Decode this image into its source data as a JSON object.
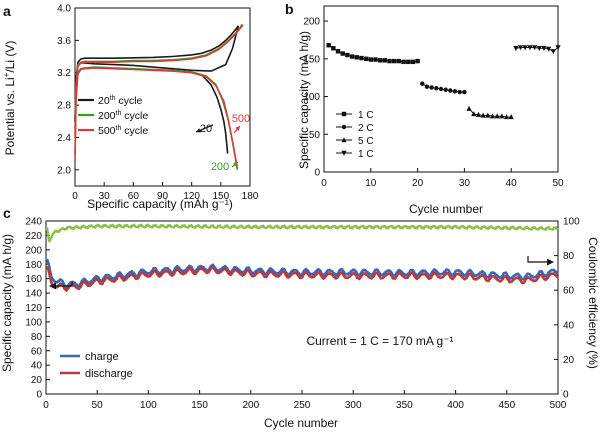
{
  "chart_data": [
    {
      "panel": "a",
      "type": "line",
      "xlabel": "Specific capacity (mAh g⁻¹)",
      "ylabel_main": "Potential vs. Li",
      "ylabel_sup": "+",
      "ylabel_end": "/Li (V)",
      "xlim": [
        0,
        180
      ],
      "ylim": [
        1.8,
        4.0
      ],
      "xticks": [
        0,
        30,
        60,
        90,
        120,
        150,
        180
      ],
      "yticks": [
        2.0,
        2.4,
        2.8,
        3.2,
        3.6,
        4.0
      ],
      "ytick_labels": [
        "2.0",
        "2.4",
        "2.8",
        "3.2",
        "3.6",
        "4.0"
      ],
      "legend": [
        {
          "base": "20",
          "sup": "th",
          "rest": " cycle",
          "color": "#1a1a1a"
        },
        {
          "base": "200",
          "sup": "th",
          "rest": " cycle",
          "color": "#3a9a2a"
        },
        {
          "base": "500",
          "sup": "th",
          "rest": " cycle",
          "color": "#d83a3a"
        }
      ],
      "annotations": [
        {
          "text": "20",
          "color": "#1a1a1a"
        },
        {
          "text": "500",
          "color": "#d83a3a"
        },
        {
          "text": "200",
          "color": "#3a9a2a"
        }
      ],
      "series": [
        {
          "name": "20th charge",
          "color": "#1a1a1a",
          "x": [
            0,
            1,
            3,
            6,
            10,
            20,
            40,
            60,
            80,
            100,
            120,
            130,
            140,
            148,
            155,
            160,
            165,
            168
          ],
          "y": [
            2.6,
            3.1,
            3.33,
            3.37,
            3.38,
            3.38,
            3.38,
            3.385,
            3.39,
            3.4,
            3.42,
            3.44,
            3.48,
            3.53,
            3.6,
            3.66,
            3.73,
            3.78
          ]
        },
        {
          "name": "20th discharge",
          "color": "#1a1a1a",
          "x": [
            168,
            162,
            155,
            140,
            120,
            100,
            80,
            60,
            40,
            20,
            10,
            6,
            3,
            1,
            0
          ],
          "y": [
            3.78,
            3.5,
            3.3,
            3.22,
            3.23,
            3.25,
            3.27,
            3.29,
            3.3,
            3.31,
            3.32,
            3.32,
            3.3,
            3.1,
            2.6
          ]
        },
        {
          "name": "20th discharge tail",
          "color": "#1a1a1a",
          "x": [
            130,
            140,
            146,
            150,
            153,
            155,
            157
          ],
          "y": [
            3.18,
            3.05,
            2.9,
            2.75,
            2.6,
            2.45,
            2.2
          ]
        },
        {
          "name": "200th charge",
          "color": "#3a9a2a",
          "x": [
            0,
            1,
            3,
            6,
            10,
            20,
            40,
            60,
            80,
            100,
            120,
            135,
            148,
            158,
            166,
            170,
            172
          ],
          "y": [
            2.5,
            3.05,
            3.3,
            3.33,
            3.34,
            3.34,
            3.34,
            3.35,
            3.35,
            3.36,
            3.38,
            3.42,
            3.5,
            3.6,
            3.7,
            3.76,
            3.8
          ]
        },
        {
          "name": "200th discharge",
          "color": "#3a9a2a",
          "x": [
            0,
            1,
            3,
            6,
            10,
            20,
            40,
            60,
            80,
            100,
            120,
            135,
            145,
            152,
            158,
            162,
            165,
            167
          ],
          "y": [
            2.2,
            2.9,
            3.2,
            3.25,
            3.26,
            3.27,
            3.26,
            3.25,
            3.24,
            3.23,
            3.21,
            3.16,
            3.05,
            2.85,
            2.6,
            2.35,
            2.15,
            2.0
          ]
        },
        {
          "name": "500th charge",
          "color": "#d83a3a",
          "x": [
            0,
            1,
            3,
            6,
            10,
            20,
            40,
            60,
            80,
            100,
            120,
            135,
            148,
            158,
            166,
            170,
            173
          ],
          "y": [
            2.4,
            3.0,
            3.28,
            3.32,
            3.33,
            3.33,
            3.33,
            3.34,
            3.34,
            3.35,
            3.37,
            3.41,
            3.49,
            3.59,
            3.69,
            3.75,
            3.79
          ]
        },
        {
          "name": "500th discharge",
          "color": "#d83a3a",
          "x": [
            0,
            1,
            3,
            6,
            10,
            20,
            40,
            60,
            80,
            100,
            120,
            135,
            145,
            153,
            158,
            162,
            165,
            167
          ],
          "y": [
            2.1,
            2.85,
            3.18,
            3.24,
            3.25,
            3.26,
            3.25,
            3.24,
            3.23,
            3.22,
            3.2,
            3.15,
            3.04,
            2.85,
            2.6,
            2.35,
            2.15,
            2.02
          ]
        }
      ]
    },
    {
      "panel": "b",
      "type": "scatter",
      "xlabel": "Cycle number",
      "ylabel": "Specific capacity (mA h/g)",
      "xlim": [
        0,
        50
      ],
      "ylim": [
        0,
        220
      ],
      "xticks": [
        0,
        10,
        20,
        30,
        40,
        50
      ],
      "yticks": [
        0,
        50,
        100,
        150,
        200
      ],
      "legend": [
        {
          "marker": "square",
          "label": "1 C"
        },
        {
          "marker": "circle",
          "label": "2 C"
        },
        {
          "marker": "triangle-up",
          "label": "5 C"
        },
        {
          "marker": "triangle-down",
          "label": "1 C"
        }
      ],
      "series": [
        {
          "name": "1 C",
          "marker": "square",
          "x": [
            1,
            2,
            3,
            4,
            5,
            6,
            7,
            8,
            9,
            10,
            11,
            12,
            13,
            14,
            15,
            16,
            17,
            18,
            19,
            20
          ],
          "y": [
            168,
            164,
            160,
            157,
            155,
            153,
            152,
            151,
            150,
            149,
            149,
            148,
            148,
            147,
            147,
            147,
            146,
            146,
            146,
            147
          ]
        },
        {
          "name": "2 C",
          "marker": "circle",
          "x": [
            21,
            22,
            23,
            24,
            25,
            26,
            27,
            28,
            29,
            30
          ],
          "y": [
            117,
            113,
            112,
            111,
            110,
            109,
            108,
            107,
            106,
            106
          ]
        },
        {
          "name": "5 C",
          "marker": "triangle-up",
          "x": [
            31,
            32,
            33,
            34,
            35,
            36,
            37,
            38,
            39,
            40
          ],
          "y": [
            84,
            77,
            76,
            75,
            75,
            74,
            74,
            74,
            73,
            73
          ]
        },
        {
          "name": "1 C",
          "marker": "triangle-down",
          "x": [
            41,
            42,
            43,
            44,
            45,
            46,
            47,
            48,
            49,
            50
          ],
          "y": [
            164,
            165,
            165,
            165,
            165,
            164,
            164,
            163,
            160,
            165
          ]
        }
      ]
    },
    {
      "panel": "c",
      "type": "scatter",
      "xlabel": "Cycle number",
      "ylabel_left": "Specific capacity (mA h/g)",
      "ylabel_right": "Coulombic efficiency (%)",
      "xlim": [
        0,
        500
      ],
      "ylim_left": [
        0,
        240
      ],
      "ylim_right": [
        0,
        100
      ],
      "xticks": [
        0,
        50,
        100,
        150,
        200,
        250,
        300,
        350,
        400,
        450,
        500
      ],
      "yticks_left": [
        0,
        20,
        40,
        60,
        80,
        100,
        120,
        140,
        160,
        180,
        200,
        220,
        240
      ],
      "yticks_right": [
        0,
        20,
        40,
        60,
        80,
        100
      ],
      "annotation": "Current = 1 C = 170 mA g⁻¹",
      "legend": [
        {
          "label": "charge",
          "color": "#3a66b8"
        },
        {
          "label": "discharge",
          "color": "#b83a3a"
        }
      ],
      "efficiency_color": "#8cc04a",
      "charge_anchors": {
        "x": [
          1,
          5,
          10,
          20,
          30,
          50,
          80,
          100,
          130,
          160,
          200,
          250,
          300,
          350,
          400,
          430,
          450,
          470,
          490,
          500
        ],
        "y": [
          185,
          163,
          157,
          152,
          153,
          160,
          166,
          170,
          173,
          175,
          171,
          169,
          169,
          168,
          169,
          166,
          164,
          163,
          168,
          171
        ]
      },
      "discharge_anchors": {
        "x": [
          1,
          5,
          10,
          20,
          30,
          50,
          80,
          100,
          130,
          160,
          200,
          250,
          300,
          350,
          400,
          430,
          450,
          470,
          490,
          500
        ],
        "y": [
          175,
          155,
          150,
          148,
          149,
          156,
          162,
          166,
          169,
          172,
          167,
          165,
          164,
          164,
          164,
          161,
          159,
          158,
          163,
          166
        ]
      },
      "efficiency_anchors": {
        "x": [
          1,
          3,
          6,
          10,
          20,
          50,
          100,
          200,
          300,
          400,
          450,
          500
        ],
        "y": [
          96,
          88,
          92,
          94,
          96,
          97,
          97,
          96.5,
          96.5,
          96.5,
          96,
          95.5
        ]
      }
    }
  ],
  "panel_labels": [
    "a",
    "b",
    "c"
  ]
}
